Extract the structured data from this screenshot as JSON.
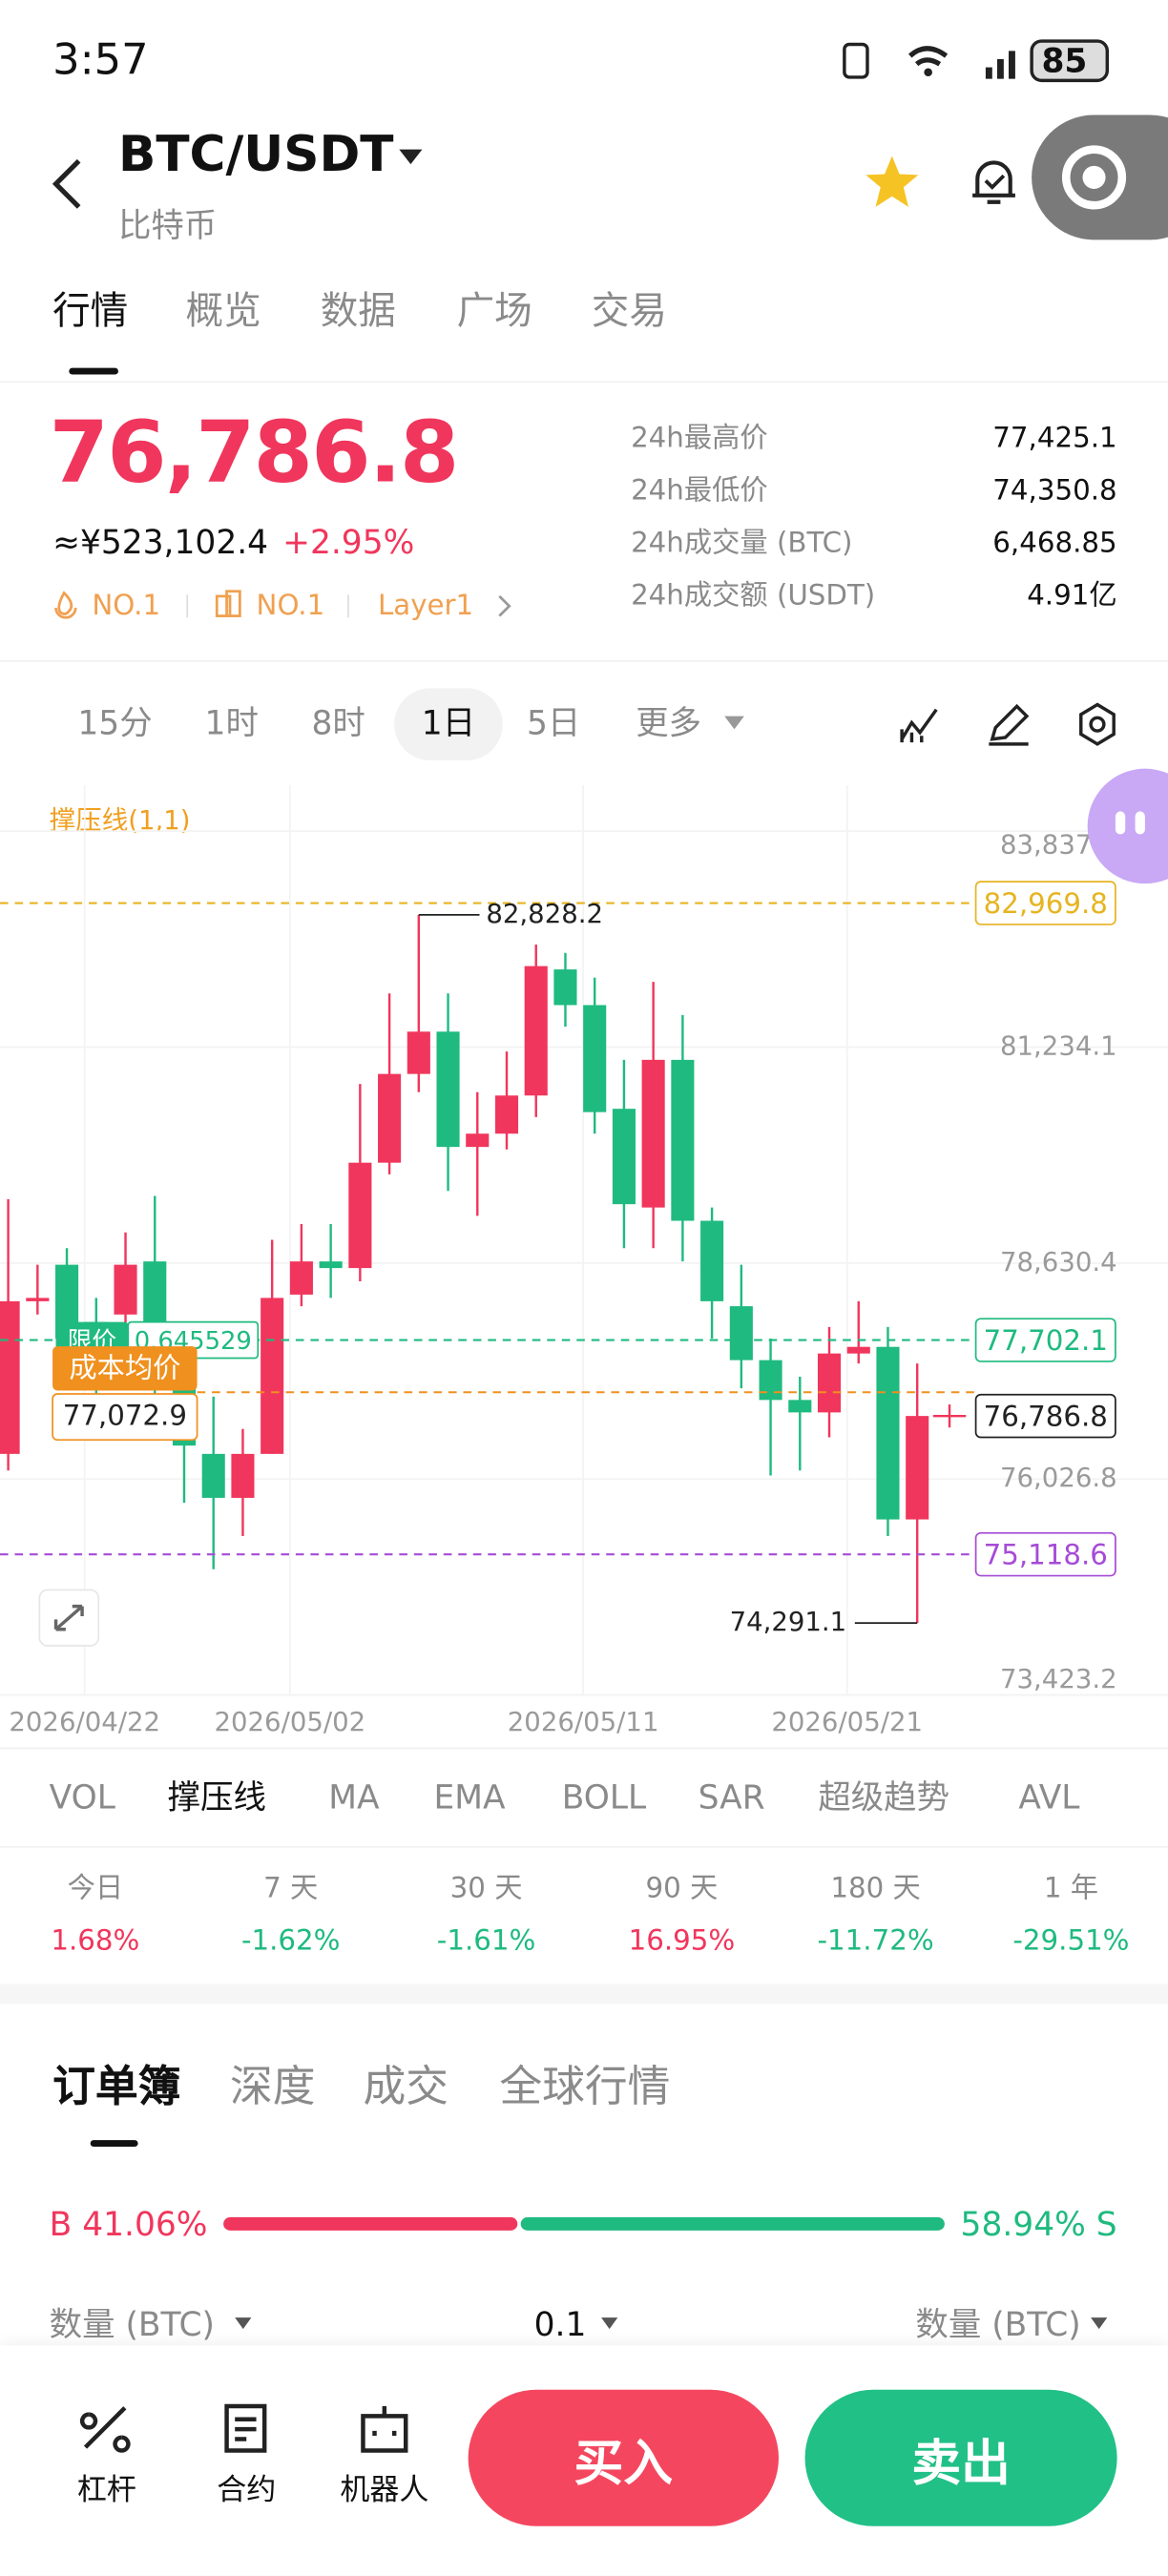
{
  "status_bar": {
    "time": "3:57",
    "battery": "85"
  },
  "header": {
    "pair": "BTC/USDT",
    "name": "比特币"
  },
  "tabs": [
    "行情",
    "概览",
    "数据",
    "广场",
    "交易"
  ],
  "price": {
    "last": "76,786.8",
    "cny": "≈¥523,102.4",
    "change": "+2.95%",
    "tags": [
      "NO.1",
      "NO.1",
      "Layer1"
    ]
  },
  "stats": [
    {
      "label": "24h最高价",
      "value": "77,425.1"
    },
    {
      "label": "24h最低价",
      "value": "74,350.8"
    },
    {
      "label": "24h成交量 (BTC)",
      "value": "6,468.85"
    },
    {
      "label": "24h成交额 (USDT)",
      "value": "4.91亿"
    }
  ],
  "intervals": [
    "15分",
    "1时",
    "8时",
    "1日",
    "5日",
    "更多"
  ],
  "chart_data": {
    "type": "candlestick",
    "title": "撑压线(1,1)",
    "categories": [
      null,
      null,
      null,
      "2026/04/22",
      null,
      null,
      null,
      null,
      null,
      null,
      "2026/05/02",
      null,
      null,
      null,
      null,
      null,
      null,
      null,
      null,
      null,
      "2026/05/11",
      null,
      null,
      null,
      null,
      null,
      null,
      null,
      null,
      "2026/05/21",
      null,
      null
    ],
    "open": [
      76330,
      78170,
      78610,
      77920,
      78010,
      78650,
      77120,
      76330,
      75800,
      76330,
      78250,
      78650,
      78570,
      79840,
      80910,
      81420,
      80030,
      80190,
      80650,
      82170,
      81740,
      80490,
      79300,
      81080,
      79140,
      78110,
      77460,
      76980,
      76830,
      77540,
      77620,
      75540
    ],
    "high": [
      79400,
      78610,
      78810,
      78210,
      79000,
      79440,
      77420,
      77020,
      76630,
      78910,
      79100,
      79100,
      80790,
      81880,
      82828.2,
      81880,
      80690,
      81180,
      82470,
      82370,
      82070,
      81080,
      82020,
      81620,
      79300,
      78610,
      77720,
      77260,
      77860,
      78170,
      77860,
      77420
    ],
    "low": [
      76130,
      78010,
      77620,
      77020,
      77820,
      77020,
      75740,
      74940,
      75340,
      76330,
      78110,
      78210,
      78410,
      79700,
      80690,
      79500,
      79200,
      80000,
      80390,
      81480,
      80190,
      78810,
      78810,
      78650,
      77720,
      77120,
      76070,
      76130,
      76530,
      77420,
      75340,
      74291.1
    ],
    "close": [
      78170,
      78210,
      77720,
      77420,
      78610,
      77120,
      76430,
      75800,
      76330,
      78210,
      78650,
      78570,
      79840,
      80910,
      81420,
      80030,
      80190,
      80650,
      82210,
      81740,
      80450,
      79340,
      81080,
      79140,
      78170,
      77460,
      76980,
      76830,
      77540,
      77620,
      75540,
      76786.8
    ],
    "up_color": "#f0365c",
    "down_color": "#1fba80",
    "ylim": [
      73423.2,
      84392
    ],
    "yticks": [
      {
        "value": 83837.7,
        "label": "83,837.7"
      },
      {
        "value": 81234.1,
        "label": "81,234.1"
      },
      {
        "value": 78630.4,
        "label": "78,630.4"
      },
      {
        "value": 76026.8,
        "label": "76,026.8"
      },
      {
        "value": 73423.2,
        "label": "73,423.2"
      }
    ],
    "grid": true,
    "price_lines": [
      {
        "value": 82969.8,
        "label": "82,969.8",
        "color": "#e6b422",
        "style": "dashed",
        "label_side": "right"
      },
      {
        "value": 77702.1,
        "label": "77,702.1",
        "color": "#1fba80",
        "style": "dashed",
        "label_side": "right",
        "tag": "限价",
        "tag_value": 0.645529
      },
      {
        "value": 77072.9,
        "label": "77,072.9",
        "color": "#f0901e",
        "style": "dashed",
        "label_side": "left",
        "tag": "成本均价"
      },
      {
        "value": 76786.8,
        "label": "76,786.8",
        "color": "#222222",
        "style": "marker",
        "label_side": "right"
      },
      {
        "value": 75118.6,
        "label": "75,118.6",
        "color": "#a64bd6",
        "style": "dashed",
        "label_side": "right"
      }
    ],
    "annotations": [
      {
        "value": 82828.2,
        "label": "82,828.2"
      },
      {
        "value": 74291.1,
        "label": "74,291.1"
      }
    ]
  },
  "indicators": [
    "VOL",
    "撑压线",
    "MA",
    "EMA",
    "BOLL",
    "SAR",
    "超级趋势",
    "AVL"
  ],
  "performance": [
    {
      "period": "今日",
      "change": "1.68%"
    },
    {
      "period": "7 天",
      "change": "-1.62%"
    },
    {
      "period": "30 天",
      "change": "-1.61%"
    },
    {
      "period": "90 天",
      "change": "16.95%"
    },
    {
      "period": "180 天",
      "change": "-11.72%"
    },
    {
      "period": "1 年",
      "change": "-29.51%"
    }
  ],
  "order_tabs": [
    "订单簿",
    "深度",
    "成交",
    "全球行情"
  ],
  "order_ratio": {
    "buy": "B 41.06%",
    "sell": "58.94% S"
  },
  "order_header": [
    "数量 (BTC)",
    "0.1",
    "数量 (BTC)"
  ],
  "bottom_nav": [
    "杠杆",
    "合约",
    "机器人"
  ],
  "actions": {
    "buy": "买入",
    "sell": "卖出"
  }
}
